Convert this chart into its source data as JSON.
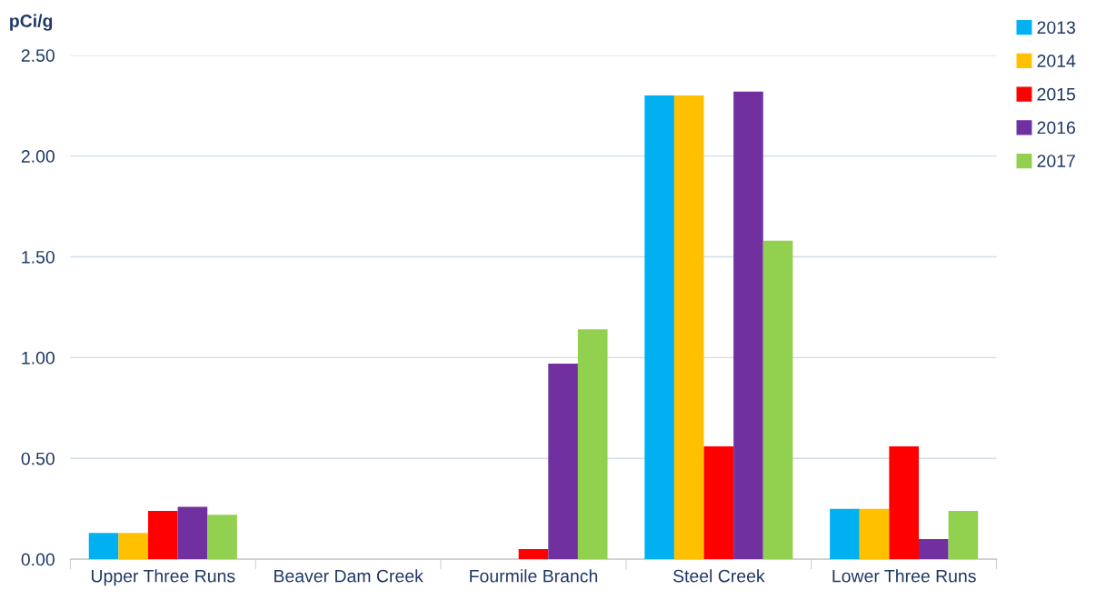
{
  "chart_data": {
    "type": "bar",
    "ylabel": "pCi/g",
    "categories": [
      "Upper Three Runs",
      "Beaver Dam Creek",
      "Fourmile Branch",
      "Steel Creek",
      "Lower Three Runs"
    ],
    "series": [
      {
        "name": "2013",
        "color": "#00b0f0",
        "values": [
          0.13,
          null,
          null,
          2.3,
          0.25
        ]
      },
      {
        "name": "2014",
        "color": "#ffc000",
        "values": [
          0.13,
          null,
          null,
          2.3,
          0.25
        ]
      },
      {
        "name": "2015",
        "color": "#ff0000",
        "values": [
          0.24,
          null,
          0.05,
          0.56,
          0.56
        ]
      },
      {
        "name": "2016",
        "color": "#7030a0",
        "values": [
          0.26,
          null,
          0.97,
          2.32,
          0.1
        ]
      },
      {
        "name": "2017",
        "color": "#92d050",
        "values": [
          0.22,
          null,
          1.14,
          1.58,
          0.24
        ]
      }
    ],
    "ylim": [
      0,
      2.5
    ],
    "yticks": [
      {
        "value": 0,
        "label": "0.00"
      },
      {
        "value": 0.5,
        "label": "0.50"
      },
      {
        "value": 1,
        "label": "1.00"
      },
      {
        "value": 1.5,
        "label": "1.50"
      },
      {
        "value": 2,
        "label": "2.00"
      },
      {
        "value": 2.5,
        "label": "2.50"
      }
    ],
    "grid": "y",
    "legend": "top right"
  }
}
